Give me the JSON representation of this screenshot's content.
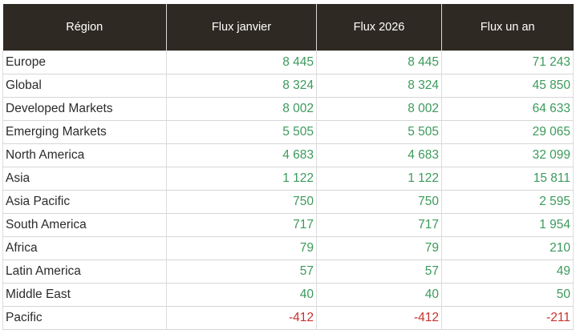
{
  "table": {
    "headers": [
      "Région",
      "Flux janvier",
      "Flux 2026",
      "Flux un an"
    ],
    "rows": [
      {
        "region": "Europe",
        "jan": "8 445",
        "ytd": "8 445",
        "year": "71 243"
      },
      {
        "region": "Global",
        "jan": "8 324",
        "ytd": "8 324",
        "year": "45 850"
      },
      {
        "region": "Developed Markets",
        "jan": "8 002",
        "ytd": "8 002",
        "year": "64 633"
      },
      {
        "region": "Emerging Markets",
        "jan": "5 505",
        "ytd": "5 505",
        "year": "29 065"
      },
      {
        "region": "North America",
        "jan": "4 683",
        "ytd": "4 683",
        "year": "32 099"
      },
      {
        "region": "Asia",
        "jan": "1 122",
        "ytd": "1 122",
        "year": "15 811"
      },
      {
        "region": "Asia Pacific",
        "jan": "750",
        "ytd": "750",
        "year": "2 595"
      },
      {
        "region": "South America",
        "jan": "717",
        "ytd": "717",
        "year": "1 954"
      },
      {
        "region": "Africa",
        "jan": "79",
        "ytd": "79",
        "year": "210"
      },
      {
        "region": "Latin America",
        "jan": "57",
        "ytd": "57",
        "year": "49"
      },
      {
        "region": "Middle East",
        "jan": "40",
        "ytd": "40",
        "year": "50"
      },
      {
        "region": "Pacific",
        "jan": "-412",
        "ytd": "-412",
        "year": "-211"
      }
    ]
  },
  "colors": {
    "header_bg": "#2e2922",
    "positive": "#3c9a5c",
    "negative": "#c8312b"
  }
}
